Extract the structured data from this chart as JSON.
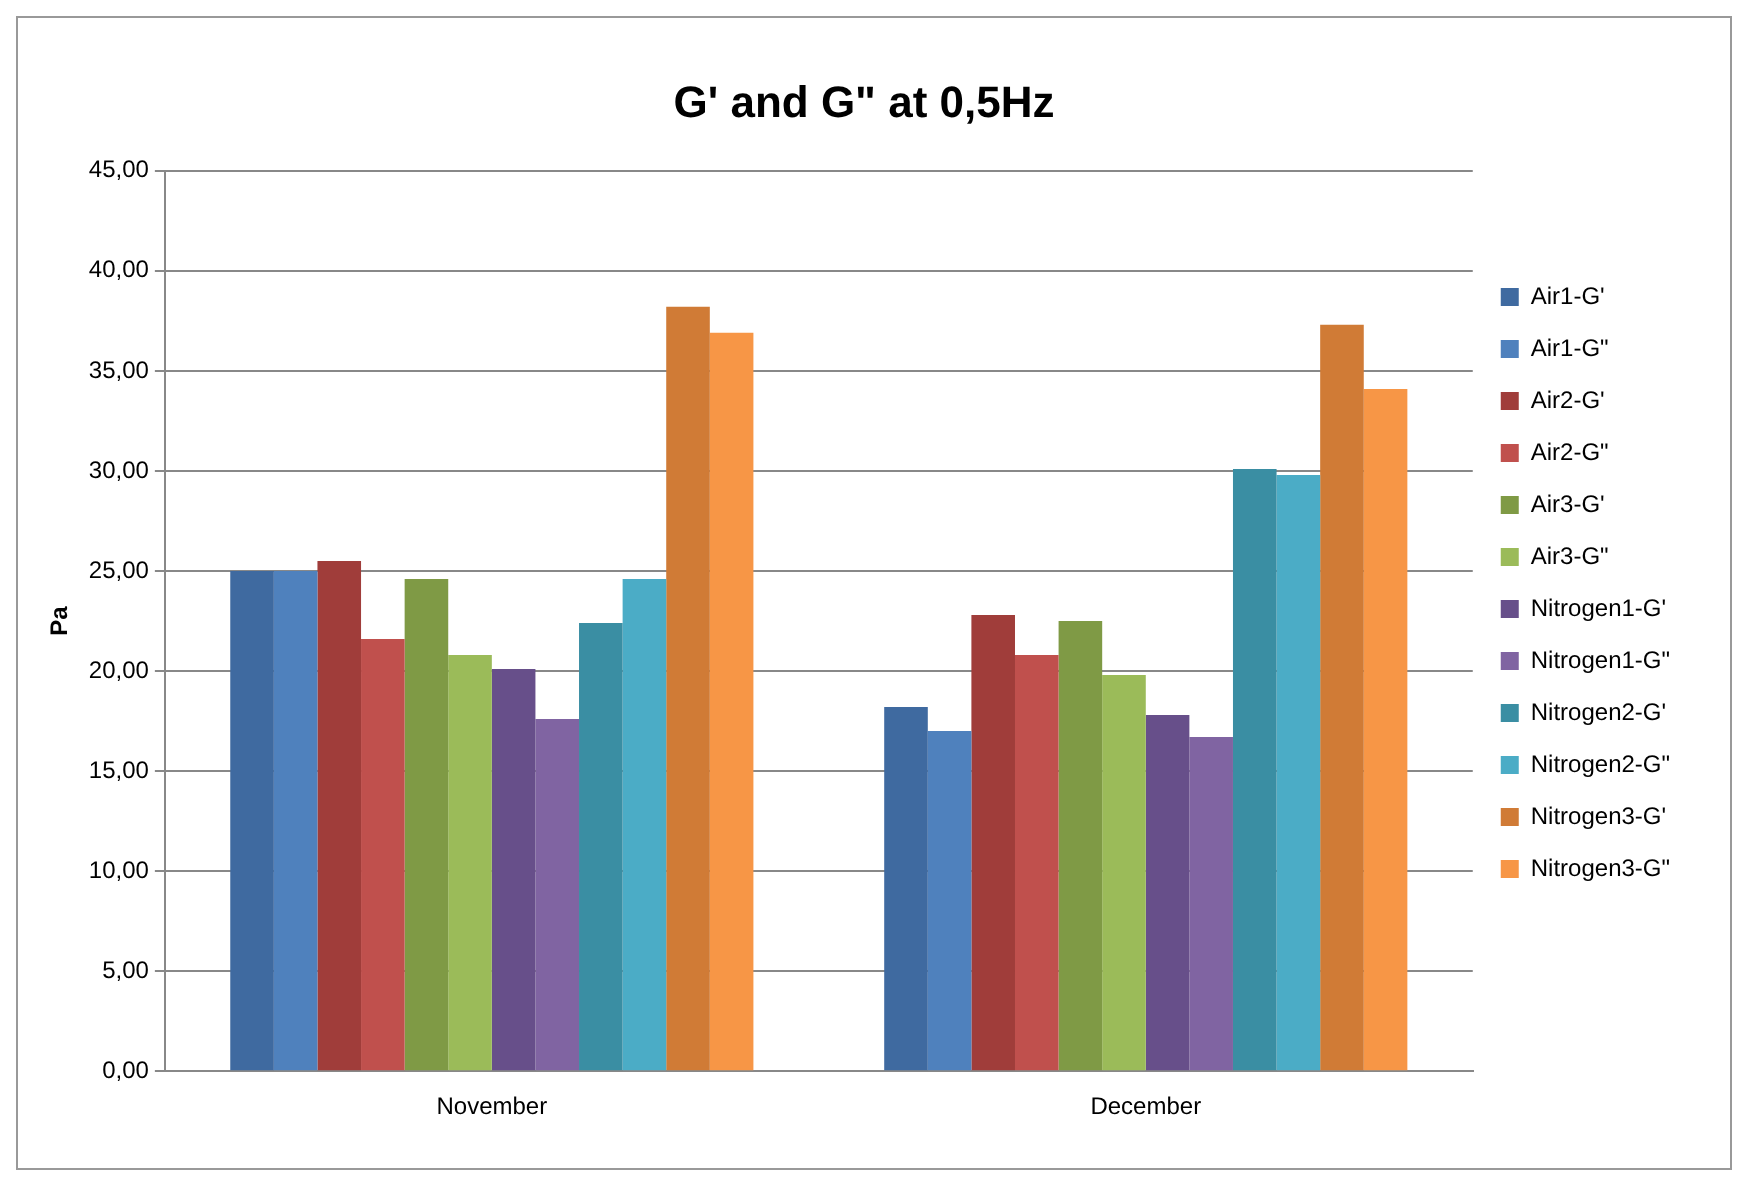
{
  "chart_data": {
    "type": "bar",
    "title": "G' and G\" at 0,5Hz",
    "ylabel": "Pa",
    "categories": [
      "November",
      "December"
    ],
    "series": [
      {
        "name": "Air1-G'",
        "color": "#3f6aa0",
        "values": [
          25.0,
          18.2
        ]
      },
      {
        "name": "Air1-G\"",
        "color": "#4f81bd",
        "values": [
          25.0,
          17.0
        ]
      },
      {
        "name": "Air2-G'",
        "color": "#a03d3a",
        "values": [
          25.5,
          22.8
        ]
      },
      {
        "name": "Air2-G\"",
        "color": "#c0504d",
        "values": [
          21.6,
          20.8
        ]
      },
      {
        "name": "Air3-G'",
        "color": "#7f9a45",
        "values": [
          24.6,
          22.5
        ]
      },
      {
        "name": "Air3-G\"",
        "color": "#9bbb59",
        "values": [
          20.8,
          19.8
        ]
      },
      {
        "name": "Nitrogen1-G'",
        "color": "#674f8a",
        "values": [
          20.1,
          17.8
        ]
      },
      {
        "name": "Nitrogen1-G\"",
        "color": "#8064a2",
        "values": [
          17.6,
          16.7
        ]
      },
      {
        "name": "Nitrogen2-G'",
        "color": "#3a8ea3",
        "values": [
          22.4,
          30.1
        ]
      },
      {
        "name": "Nitrogen2-G\"",
        "color": "#4bacc6",
        "values": [
          24.6,
          29.8
        ]
      },
      {
        "name": "Nitrogen3-G'",
        "color": "#d07b36",
        "values": [
          38.2,
          37.3
        ]
      },
      {
        "name": "Nitrogen3-G\"",
        "color": "#f79646",
        "values": [
          36.9,
          34.1
        ]
      }
    ],
    "ylim": [
      0,
      45
    ],
    "yticks": [
      {
        "value": 0,
        "label": "0,00"
      },
      {
        "value": 5,
        "label": "5,00"
      },
      {
        "value": 10,
        "label": "10,00"
      },
      {
        "value": 15,
        "label": "15,00"
      },
      {
        "value": 20,
        "label": "20,00"
      },
      {
        "value": 25,
        "label": "25,00"
      },
      {
        "value": 30,
        "label": "30,00"
      },
      {
        "value": 35,
        "label": "35,00"
      },
      {
        "value": 40,
        "label": "40,00"
      },
      {
        "value": 45,
        "label": "45,00"
      }
    ],
    "grid": "y",
    "legend": "right"
  }
}
